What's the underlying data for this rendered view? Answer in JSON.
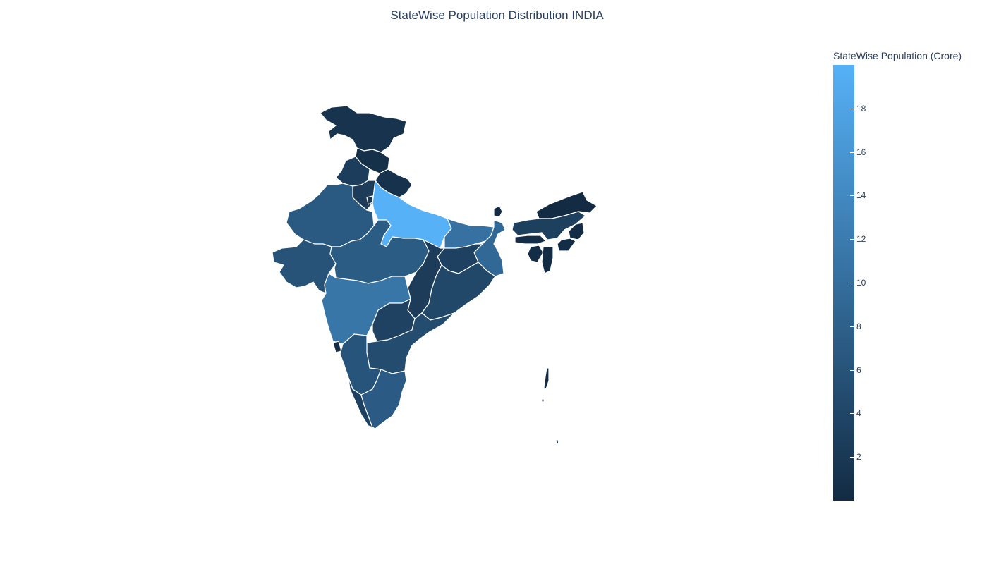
{
  "title": "StateWise Population Distribution INDIA",
  "chart_data": {
    "type": "choropleth",
    "title": "StateWise Population Distribution INDIA",
    "colorbar": {
      "title": "StateWise Population (Crore)",
      "min": 0,
      "max": 20,
      "ticks": [
        "2",
        "4",
        "6",
        "8",
        "10",
        "12",
        "14",
        "16",
        "18"
      ],
      "tick_values": [
        2,
        4,
        6,
        8,
        10,
        12,
        14,
        16,
        18
      ],
      "color_low": "#132b43",
      "color_high": "#56b1f7"
    },
    "regions": [
      {
        "id": "jammu-kashmir",
        "value": 1.25
      },
      {
        "id": "himachal-pradesh",
        "value": 0.69
      },
      {
        "id": "punjab",
        "value": 2.77
      },
      {
        "id": "uttarakhand",
        "value": 1.01
      },
      {
        "id": "haryana",
        "value": 2.54
      },
      {
        "id": "delhi",
        "value": 1.68
      },
      {
        "id": "rajasthan",
        "value": 6.85
      },
      {
        "id": "uttar-pradesh",
        "value": 19.98
      },
      {
        "id": "bihar",
        "value": 10.41
      },
      {
        "id": "sikkim",
        "value": 0.06
      },
      {
        "id": "arunachal-pradesh",
        "value": 0.14
      },
      {
        "id": "assam",
        "value": 3.12
      },
      {
        "id": "nagaland",
        "value": 0.2
      },
      {
        "id": "manipur",
        "value": 0.29
      },
      {
        "id": "mizoram",
        "value": 0.11
      },
      {
        "id": "tripura",
        "value": 0.37
      },
      {
        "id": "meghalaya",
        "value": 0.3
      },
      {
        "id": "west-bengal",
        "value": 9.13
      },
      {
        "id": "jharkhand",
        "value": 3.3
      },
      {
        "id": "odisha",
        "value": 4.2
      },
      {
        "id": "chhattisgarh",
        "value": 2.56
      },
      {
        "id": "madhya-pradesh",
        "value": 7.26
      },
      {
        "id": "gujarat",
        "value": 6.04
      },
      {
        "id": "maharashtra",
        "value": 11.24
      },
      {
        "id": "telangana",
        "value": 3.5
      },
      {
        "id": "andhra-pradesh",
        "value": 4.94
      },
      {
        "id": "karnataka",
        "value": 6.11
      },
      {
        "id": "goa",
        "value": 0.15
      },
      {
        "id": "kerala",
        "value": 3.34
      },
      {
        "id": "tamil-nadu",
        "value": 7.21
      },
      {
        "id": "andaman-nicobar",
        "value": 0.04
      }
    ]
  }
}
